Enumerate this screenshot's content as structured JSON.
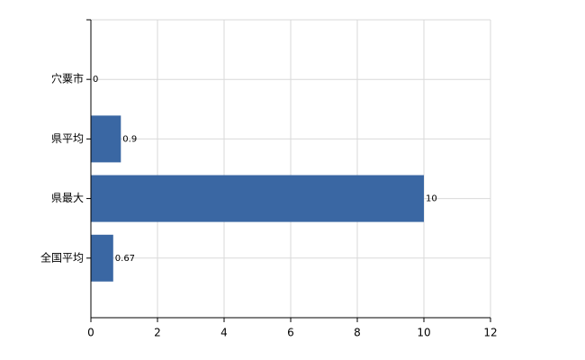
{
  "chart_data": {
    "type": "barh",
    "categories": [
      "穴粟市",
      "県平均",
      "県最大",
      "全国平均"
    ],
    "values": [
      0,
      0.9,
      10,
      0.67
    ],
    "color": "#3a67a3",
    "xlim": [
      0,
      12
    ],
    "xticks": [
      0,
      2,
      4,
      6,
      8,
      10,
      12
    ],
    "grid": true
  }
}
